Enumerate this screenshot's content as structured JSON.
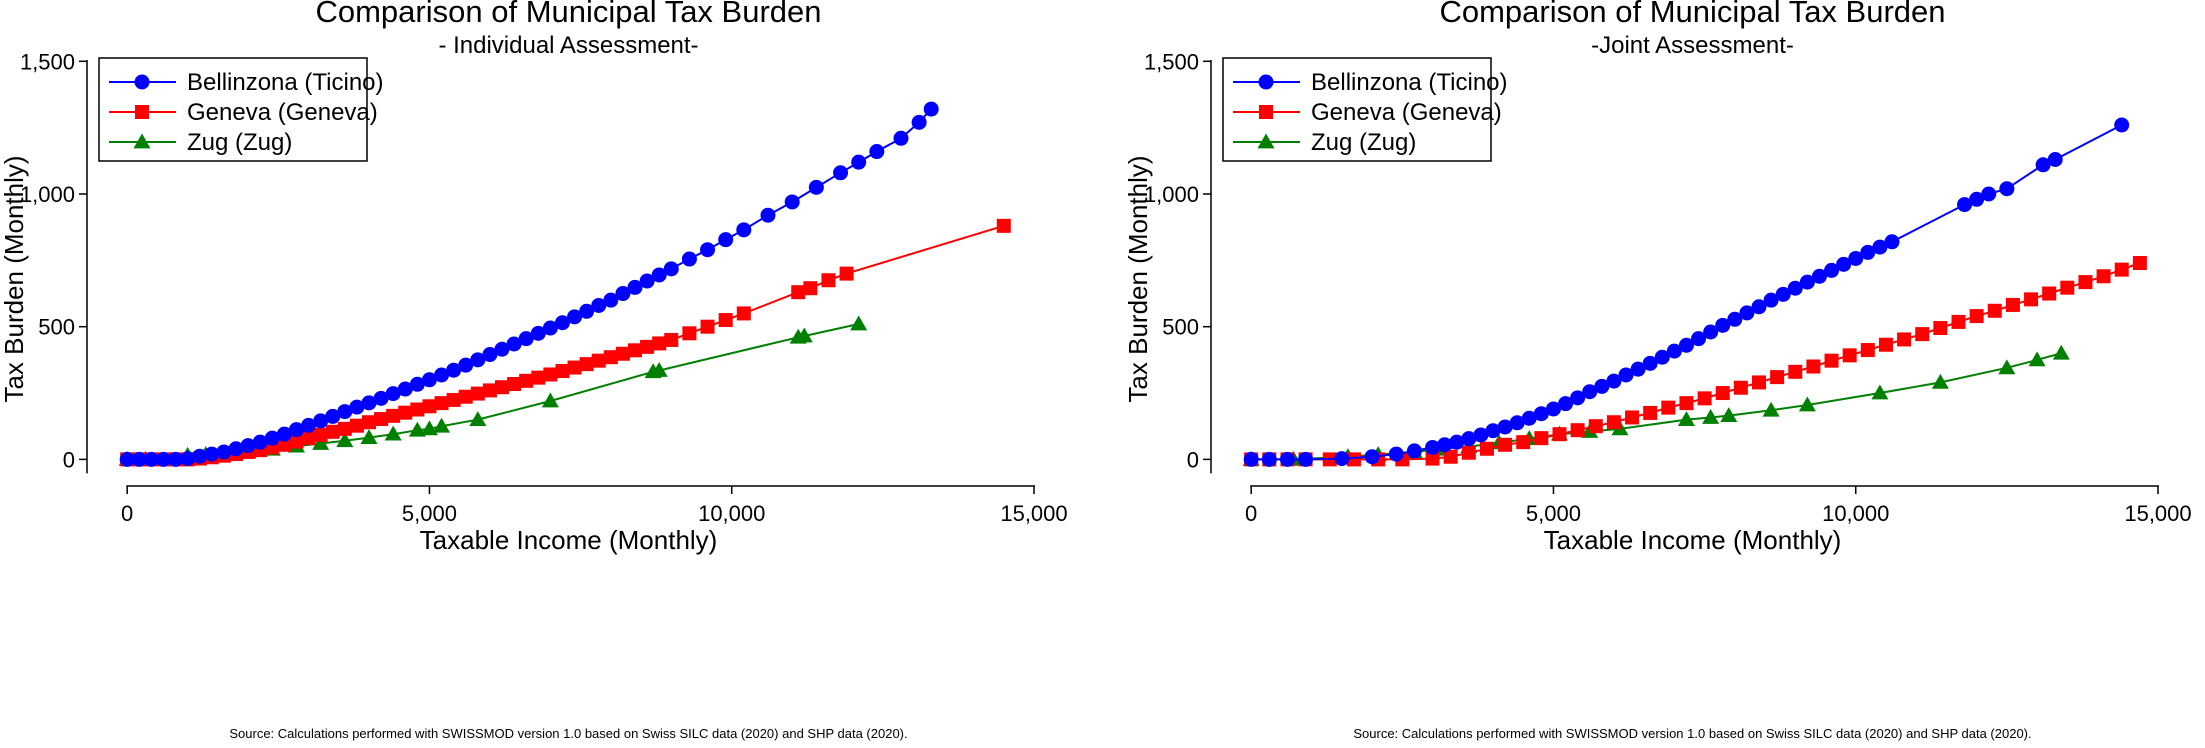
{
  "colors": {
    "Bellinzona": "#0000ff",
    "Geneva": "#ff0000",
    "Zug": "#008000"
  },
  "chart_data": [
    {
      "type": "line",
      "title": "Comparison of Municipal Tax Burden",
      "subtitle": "- Individual Assessment-",
      "xlabel": "Taxable Income (Monthly)",
      "ylabel": "Tax Burden (Monthly)",
      "xlim": [
        -400,
        15000
      ],
      "ylim": [
        -40,
        1520
      ],
      "xticks": [
        0,
        5000,
        10000,
        15000
      ],
      "xtick_labels": [
        "0",
        "5,000",
        "10,000",
        "15,000"
      ],
      "yticks": [
        0,
        500,
        1000,
        1500
      ],
      "ytick_labels": [
        "0",
        "500",
        "1,000",
        "1,500"
      ],
      "legend": "top-left",
      "grid": false,
      "source": "Source: Calculations performed with SWISSMOD version 1.0 based on Swiss SILC data (2020) and SHP data (2020).",
      "series": [
        {
          "name": "Bellinzona (Ticino)",
          "marker": "circle",
          "x": [
            0,
            200,
            400,
            600,
            800,
            1000,
            1200,
            1400,
            1600,
            1800,
            2000,
            2200,
            2400,
            2600,
            2800,
            3000,
            3200,
            3400,
            3600,
            3800,
            4000,
            4200,
            4400,
            4600,
            4800,
            5000,
            5200,
            5400,
            5600,
            5800,
            6000,
            6200,
            6400,
            6600,
            6800,
            7000,
            7200,
            7400,
            7600,
            7800,
            8000,
            8200,
            8400,
            8600,
            8800,
            9000,
            9300,
            9600,
            9900,
            10200,
            10600,
            11000,
            11400,
            11800,
            12100,
            12400,
            12800,
            13100,
            13300
          ],
          "y": [
            0,
            0,
            0,
            0,
            0,
            3,
            12,
            20,
            28,
            40,
            52,
            65,
            80,
            95,
            112,
            128,
            145,
            162,
            180,
            197,
            213,
            230,
            248,
            265,
            283,
            300,
            318,
            336,
            355,
            375,
            395,
            415,
            435,
            455,
            475,
            495,
            515,
            537,
            558,
            580,
            600,
            625,
            648,
            672,
            695,
            718,
            755,
            790,
            828,
            865,
            920,
            970,
            1025,
            1080,
            1120,
            1160,
            1210,
            1270,
            1320
          ]
        },
        {
          "name": "Geneva (Geneva)",
          "marker": "square",
          "x": [
            0,
            200,
            400,
            600,
            800,
            1000,
            1200,
            1400,
            1600,
            1800,
            2000,
            2200,
            2400,
            2600,
            2800,
            3000,
            3200,
            3400,
            3600,
            3800,
            4000,
            4200,
            4400,
            4600,
            4800,
            5000,
            5200,
            5400,
            5600,
            5800,
            6000,
            6200,
            6400,
            6600,
            6800,
            7000,
            7200,
            7400,
            7600,
            7800,
            8000,
            8200,
            8400,
            8600,
            8800,
            9000,
            9300,
            9600,
            9900,
            10200,
            11100,
            11300,
            11600,
            11900,
            14500
          ],
          "y": [
            0,
            0,
            0,
            0,
            0,
            0,
            3,
            8,
            14,
            20,
            28,
            35,
            45,
            55,
            67,
            80,
            92,
            104,
            115,
            127,
            140,
            152,
            164,
            176,
            188,
            200,
            212,
            224,
            236,
            248,
            260,
            272,
            284,
            296,
            308,
            320,
            333,
            346,
            359,
            372,
            385,
            398,
            411,
            424,
            437,
            450,
            475,
            500,
            525,
            550,
            630,
            645,
            675,
            700,
            880
          ]
        },
        {
          "name": "Zug (Zug)",
          "marker": "triangle",
          "x": [
            0,
            300,
            1000,
            1300,
            1600,
            2000,
            2400,
            2800,
            3200,
            3600,
            4000,
            4400,
            4800,
            5000,
            5200,
            5800,
            7000,
            8700,
            8800,
            11100,
            11200,
            12100
          ],
          "y": [
            0,
            0,
            15,
            18,
            22,
            28,
            38,
            50,
            60,
            70,
            82,
            95,
            110,
            115,
            125,
            150,
            220,
            330,
            335,
            460,
            465,
            510
          ]
        }
      ]
    },
    {
      "type": "line",
      "title": "Comparison of Municipal Tax Burden",
      "subtitle": "-Joint Assessment-",
      "xlabel": "Taxable Income (Monthly)",
      "ylabel": "Tax Burden (Monthly)",
      "xlim": [
        -400,
        15000
      ],
      "ylim": [
        -40,
        1520
      ],
      "xticks": [
        0,
        5000,
        10000,
        15000
      ],
      "xtick_labels": [
        "0",
        "5,000",
        "10,000",
        "15,000"
      ],
      "yticks": [
        0,
        500,
        1000,
        1500
      ],
      "ytick_labels": [
        "0",
        "500",
        "1,000",
        "1,500"
      ],
      "legend": "top-left",
      "grid": false,
      "source": "Source: Calculations performed with SWISSMOD version 1.0 based on Swiss SILC data (2020) and SHP data (2020).",
      "series": [
        {
          "name": "Bellinzona (Ticino)",
          "marker": "circle",
          "x": [
            0,
            300,
            600,
            900,
            1500,
            2000,
            2400,
            2700,
            3000,
            3200,
            3400,
            3600,
            3800,
            4000,
            4200,
            4400,
            4600,
            4800,
            5000,
            5200,
            5400,
            5600,
            5800,
            6000,
            6200,
            6400,
            6600,
            6800,
            7000,
            7200,
            7400,
            7600,
            7800,
            8000,
            8200,
            8400,
            8600,
            8800,
            9000,
            9200,
            9400,
            9600,
            9800,
            10000,
            10200,
            10400,
            10600,
            11800,
            12000,
            12200,
            12500,
            13100,
            13300,
            14400
          ],
          "y": [
            0,
            0,
            0,
            0,
            3,
            10,
            20,
            32,
            45,
            55,
            65,
            78,
            92,
            108,
            122,
            138,
            155,
            172,
            190,
            210,
            232,
            255,
            275,
            295,
            318,
            340,
            362,
            385,
            408,
            430,
            455,
            480,
            505,
            528,
            552,
            575,
            600,
            622,
            645,
            668,
            690,
            712,
            735,
            757,
            780,
            800,
            820,
            960,
            980,
            1000,
            1020,
            1110,
            1130,
            1260
          ]
        },
        {
          "name": "Geneva (Geneva)",
          "marker": "square",
          "x": [
            0,
            300,
            600,
            900,
            1300,
            1700,
            2100,
            2500,
            3000,
            3300,
            3600,
            3900,
            4200,
            4500,
            4800,
            5100,
            5400,
            5700,
            6000,
            6300,
            6600,
            6900,
            7200,
            7500,
            7800,
            8100,
            8400,
            8700,
            9000,
            9300,
            9600,
            9900,
            10200,
            10500,
            10800,
            11100,
            11400,
            11700,
            12000,
            12300,
            12600,
            12900,
            13200,
            13500,
            13800,
            14100,
            14400,
            14700
          ],
          "y": [
            0,
            0,
            0,
            0,
            0,
            0,
            0,
            0,
            3,
            10,
            25,
            40,
            55,
            65,
            80,
            95,
            110,
            125,
            140,
            158,
            175,
            195,
            212,
            230,
            250,
            270,
            290,
            310,
            330,
            350,
            372,
            392,
            412,
            432,
            452,
            472,
            495,
            518,
            540,
            560,
            582,
            603,
            625,
            647,
            668,
            690,
            715,
            740
          ]
        },
        {
          "name": "Zug (Zug)",
          "marker": "triangle",
          "x": [
            0,
            700,
            1600,
            2100,
            2700,
            3100,
            3600,
            4100,
            4600,
            5100,
            5600,
            6100,
            7200,
            7600,
            7900,
            8600,
            9200,
            10400,
            11400,
            12500,
            13000,
            13400
          ],
          "y": [
            0,
            0,
            10,
            18,
            28,
            38,
            48,
            62,
            78,
            95,
            105,
            115,
            150,
            158,
            165,
            185,
            205,
            250,
            290,
            345,
            375,
            400
          ]
        }
      ]
    }
  ]
}
